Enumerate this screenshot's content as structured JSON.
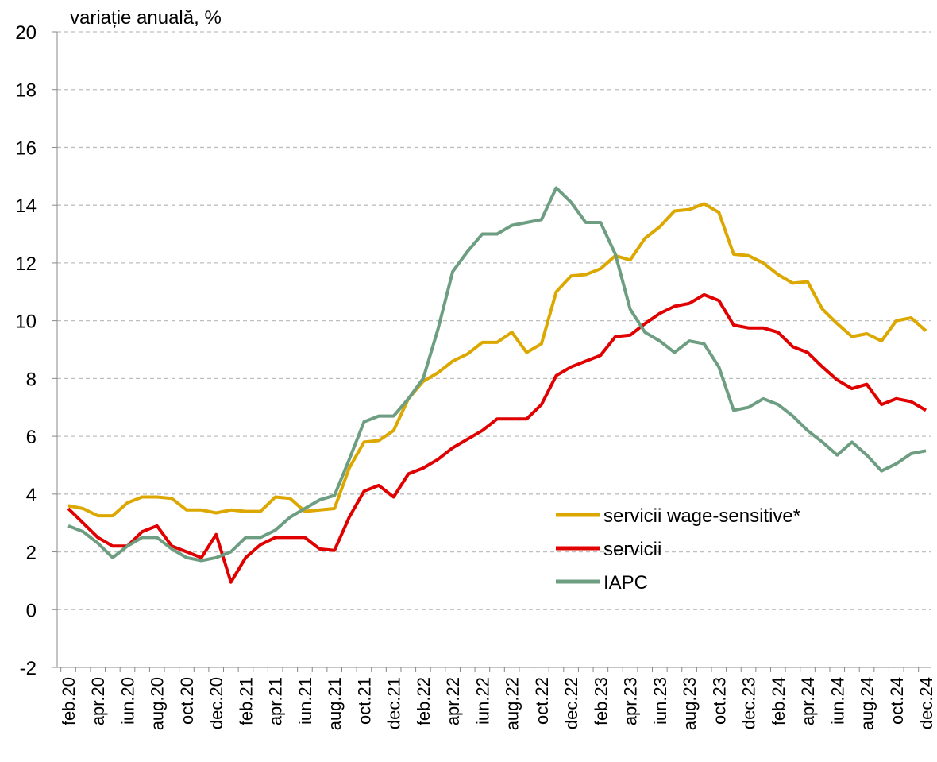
{
  "chart_data": {
    "type": "line",
    "ylabel": "variație anuală, %",
    "categories": [
      "feb.20",
      null,
      "apr.20",
      null,
      "iun.20",
      null,
      "aug.20",
      null,
      "oct.20",
      null,
      "dec.20",
      null,
      "feb.21",
      null,
      "apr.21",
      null,
      "iun.21",
      null,
      "aug.21",
      null,
      "oct.21",
      null,
      "dec.21",
      null,
      "feb.22",
      null,
      "apr.22",
      null,
      "iun.22",
      null,
      "aug.22",
      null,
      "oct.22",
      null,
      "dec.22",
      null,
      "feb.23",
      null,
      "apr.23",
      null,
      "iun.23",
      null,
      "aug.23",
      null,
      "oct.23",
      null,
      "dec.23",
      null,
      "feb.24",
      null,
      "apr.24",
      null,
      "iun.24",
      null,
      "aug.24",
      null,
      "oct.24",
      null,
      "dec.24"
    ],
    "series": [
      {
        "name": "servicii wage-sensitive*",
        "color": "#dca800",
        "values": [
          3.6,
          3.5,
          3.25,
          3.25,
          3.7,
          3.9,
          3.9,
          3.85,
          3.45,
          3.45,
          3.35,
          3.45,
          3.4,
          3.4,
          3.9,
          3.85,
          3.4,
          3.45,
          3.5,
          4.9,
          5.8,
          5.85,
          6.2,
          7.3,
          7.9,
          8.2,
          8.6,
          8.85,
          9.25,
          9.25,
          9.6,
          8.9,
          9.2,
          11.0,
          11.55,
          11.6,
          11.8,
          12.25,
          12.1,
          12.85,
          13.25,
          13.8,
          13.85,
          14.05,
          13.75,
          12.3,
          12.25,
          12.0,
          11.6,
          11.3,
          11.35,
          10.4,
          9.9,
          9.45,
          9.55,
          9.3,
          10.0,
          10.1,
          9.65
        ]
      },
      {
        "name": "servicii",
        "color": "#e00000",
        "values": [
          3.5,
          3.0,
          2.5,
          2.2,
          2.2,
          2.7,
          2.9,
          2.2,
          2.0,
          1.8,
          2.6,
          0.95,
          1.8,
          2.25,
          2.5,
          2.5,
          2.5,
          2.1,
          2.05,
          3.2,
          4.1,
          4.3,
          3.9,
          4.7,
          4.9,
          5.2,
          5.6,
          5.9,
          6.2,
          6.6,
          6.6,
          6.6,
          7.1,
          8.1,
          8.4,
          8.6,
          8.8,
          9.45,
          9.5,
          9.9,
          10.25,
          10.5,
          10.6,
          10.9,
          10.7,
          9.85,
          9.75,
          9.75,
          9.6,
          9.1,
          8.9,
          8.4,
          7.95,
          7.65,
          7.8,
          7.1,
          7.3,
          7.2,
          6.9
        ]
      },
      {
        "name": "IAPC",
        "color": "#6e9e82",
        "values": [
          2.9,
          2.7,
          2.3,
          1.8,
          2.2,
          2.5,
          2.5,
          2.1,
          1.8,
          1.7,
          1.8,
          2.0,
          2.5,
          2.5,
          2.75,
          3.2,
          3.5,
          3.8,
          3.95,
          5.2,
          6.5,
          6.7,
          6.7,
          7.3,
          8.0,
          9.7,
          11.7,
          12.4,
          13.0,
          13.0,
          13.3,
          13.4,
          13.5,
          14.6,
          14.1,
          13.4,
          13.4,
          12.3,
          10.4,
          9.6,
          9.3,
          8.9,
          9.3,
          9.2,
          8.4,
          6.9,
          7.0,
          7.3,
          7.1,
          6.7,
          6.2,
          5.8,
          5.35,
          5.8,
          5.35,
          4.8,
          5.05,
          5.4,
          5.5
        ]
      }
    ],
    "ylim": [
      -2,
      20
    ],
    "yticks": [
      -2,
      0,
      2,
      4,
      6,
      8,
      10,
      12,
      14,
      16,
      18,
      20
    ],
    "grid": true,
    "legend_loc": "lower right"
  }
}
